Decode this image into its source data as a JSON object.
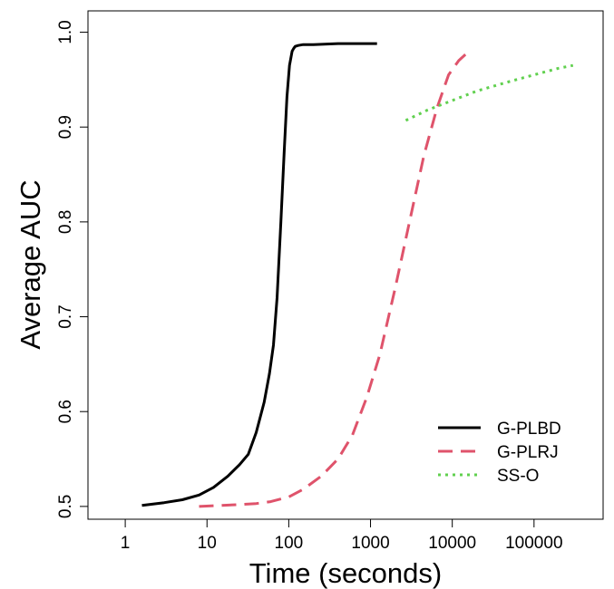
{
  "chart_data": {
    "type": "line",
    "title": "",
    "xlabel": "Time (seconds)",
    "ylabel": "Average AUC",
    "xscale": "log10",
    "xlim": [
      0.35,
      700000
    ],
    "ylim": [
      0.4865,
      1.0225
    ],
    "xticks": [
      {
        "value": 1,
        "label": "1"
      },
      {
        "value": 10,
        "label": "10"
      },
      {
        "value": 100,
        "label": "100"
      },
      {
        "value": 1000,
        "label": "1000"
      },
      {
        "value": 10000,
        "label": "10000"
      },
      {
        "value": 100000,
        "label": "100000"
      }
    ],
    "yticks": [
      {
        "value": 0.5,
        "label": "0.5"
      },
      {
        "value": 0.6,
        "label": "0.6"
      },
      {
        "value": 0.7,
        "label": "0.7"
      },
      {
        "value": 0.8,
        "label": "0.8"
      },
      {
        "value": 0.9,
        "label": "0.9"
      },
      {
        "value": 1.0,
        "label": "1.0"
      }
    ],
    "legend_position": "bottom-right",
    "series": [
      {
        "name": "G-PLBD",
        "color": "#000000",
        "dash": "solid",
        "x": [
          1.6,
          3,
          5,
          8,
          12,
          18,
          25,
          32,
          40,
          50,
          58,
          65,
          72,
          80,
          88,
          95,
          102,
          110,
          115,
          120,
          130,
          150,
          200,
          400,
          700,
          1200
        ],
        "y": [
          0.501,
          0.504,
          0.507,
          0.512,
          0.52,
          0.532,
          0.544,
          0.555,
          0.578,
          0.61,
          0.64,
          0.67,
          0.72,
          0.8,
          0.875,
          0.932,
          0.965,
          0.98,
          0.983,
          0.985,
          0.986,
          0.987,
          0.987,
          0.988,
          0.988,
          0.988
        ]
      },
      {
        "name": "G-PLRJ",
        "color": "#DF536B",
        "dash": "dashed",
        "x": [
          8,
          15,
          25,
          40,
          60,
          100,
          150,
          250,
          400,
          600,
          900,
          1300,
          2000,
          3000,
          4500,
          6500,
          9000,
          12000,
          16000
        ],
        "y": [
          0.5,
          0.501,
          0.502,
          0.503,
          0.505,
          0.51,
          0.518,
          0.532,
          0.55,
          0.575,
          0.615,
          0.66,
          0.73,
          0.8,
          0.87,
          0.92,
          0.955,
          0.97,
          0.98
        ]
      },
      {
        "name": "SS-O",
        "color": "#61D04F",
        "dash": "dotted",
        "x": [
          2700,
          5000,
          10000,
          20000,
          50000,
          100000,
          200000,
          300000
        ],
        "y": [
          0.907,
          0.918,
          0.928,
          0.938,
          0.948,
          0.955,
          0.962,
          0.965
        ]
      }
    ]
  }
}
